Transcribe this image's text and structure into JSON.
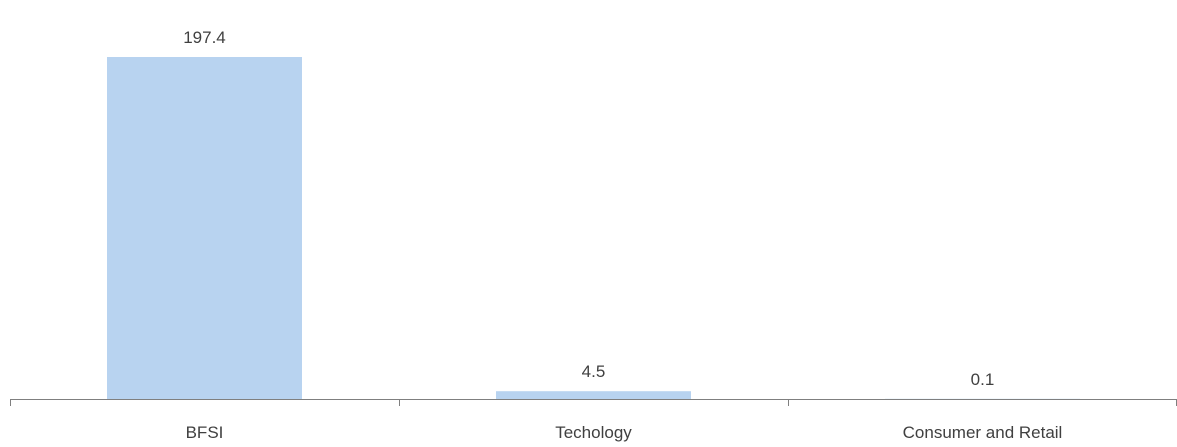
{
  "chart_data": {
    "type": "bar",
    "title": "",
    "xlabel": "",
    "ylabel": "",
    "categories": [
      "BFSI",
      "Techology",
      "Consumer and Retail"
    ],
    "values": [
      197.4,
      4.5,
      0.1
    ],
    "value_labels": [
      "197.4",
      "4.5",
      "0.1"
    ],
    "ylim": [
      0,
      197.4
    ],
    "grid": false,
    "legend": "none",
    "colors": {
      "bar": "#B8D3F0",
      "axis": "#7F7F7F",
      "text": "#404040"
    }
  }
}
